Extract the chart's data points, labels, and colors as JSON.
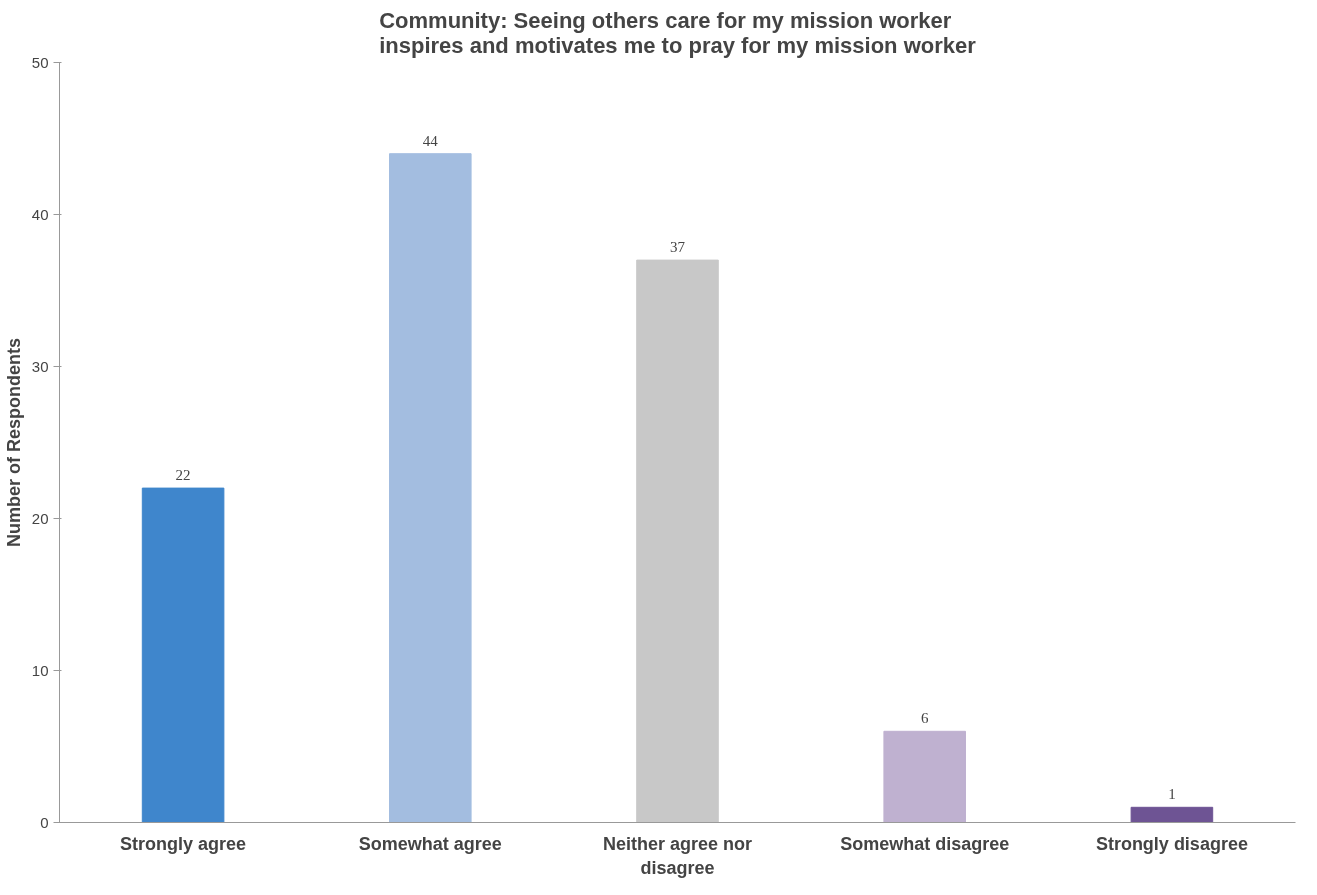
{
  "chart_data": {
    "type": "bar",
    "title": "Community: Seeing others care for my mission worker\ninspires and motivates me to pray for my mission worker",
    "ylabel": "Number of Respondents",
    "categories": [
      "Strongly agree",
      "Somewhat agree",
      "Neither agree nor\ndisagree",
      "Somewhat disagree",
      "Strongly disagree"
    ],
    "values": [
      22,
      44,
      37,
      6,
      1
    ],
    "colors": [
      "#3f86cc",
      "#a3bde0",
      "#c8c8c8",
      "#bfb1d0",
      "#6e5494"
    ],
    "ylim": [
      0,
      50
    ],
    "yticks": [
      0,
      10,
      20,
      30,
      40,
      50
    ],
    "grid": false,
    "data_labels": true
  }
}
